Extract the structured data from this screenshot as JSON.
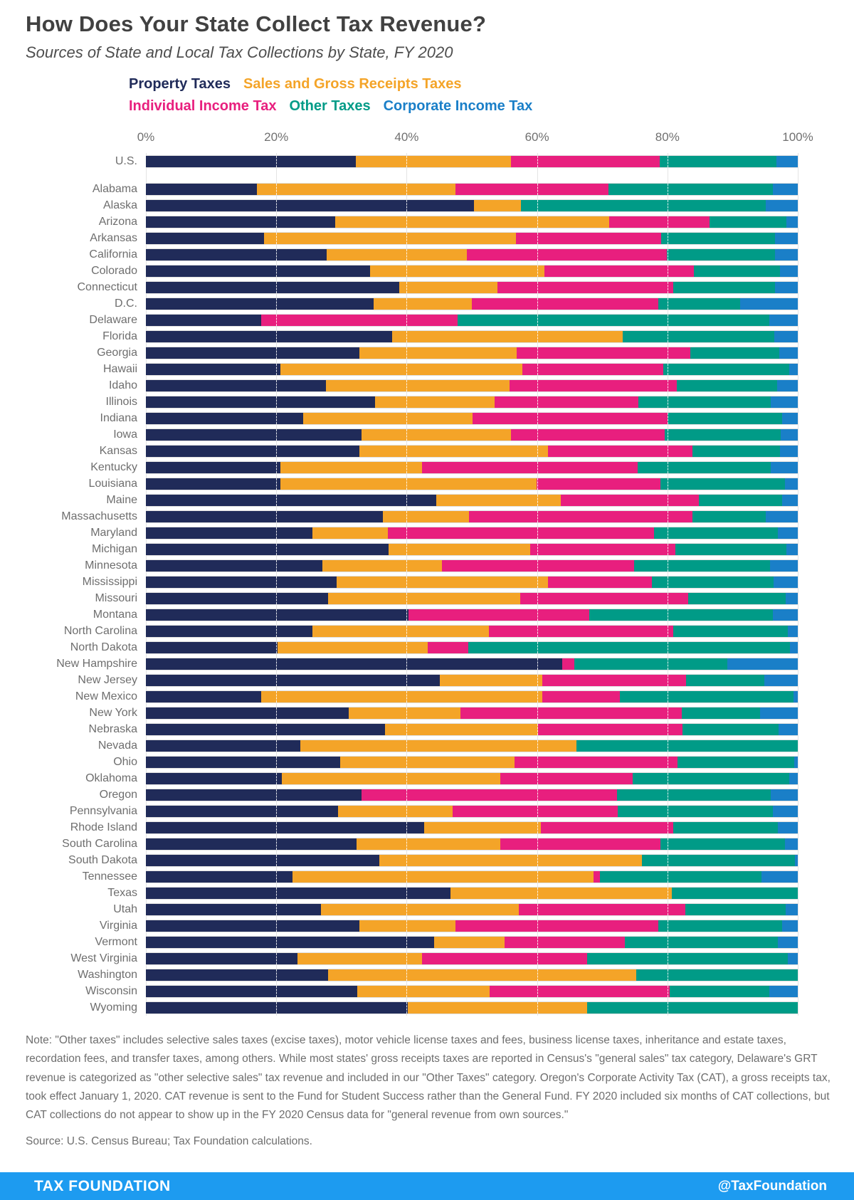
{
  "header": {
    "title": "How Does Your State Collect Tax Revenue?",
    "subtitle": "Sources of State and Local Tax Collections by State, FY 2020"
  },
  "legend": [
    {
      "label": "Property Taxes",
      "color": "#202b59",
      "line": 1
    },
    {
      "label": "Sales and Gross Receipts Taxes",
      "color": "#f4a428",
      "line": 1
    },
    {
      "label": "Individual Income Tax",
      "color": "#e81f7e",
      "line": 2
    },
    {
      "label": "Other Taxes",
      "color": "#009b87",
      "line": 2
    },
    {
      "label": "Corporate Income Tax",
      "color": "#1a7fc8",
      "line": 2
    }
  ],
  "axis": {
    "ticks": [
      {
        "label": "0%",
        "pct": 0
      },
      {
        "label": "20%",
        "pct": 20
      },
      {
        "label": "40%",
        "pct": 40
      },
      {
        "label": "60%",
        "pct": 60
      },
      {
        "label": "80%",
        "pct": 80
      },
      {
        "label": "100%",
        "pct": 100
      }
    ]
  },
  "chart_data": {
    "type": "bar",
    "orientation": "horizontal-stacked",
    "xlim": [
      0,
      100
    ],
    "grid": "dashed-white-at-20-40-60-80",
    "legend_position": "top",
    "series_names": [
      "Property Taxes",
      "Sales and Gross Receipts Taxes",
      "Individual Income Tax",
      "Other Taxes",
      "Corporate Income Tax"
    ],
    "colors": [
      "#202b59",
      "#f4a428",
      "#e81f7e",
      "#009b87",
      "#1a7fc8"
    ],
    "rows": [
      {
        "label": "U.S.",
        "values": [
          32.2,
          23.8,
          22.8,
          17.9,
          3.3
        ]
      },
      {
        "label": "Alabama",
        "values": [
          17.0,
          30.5,
          23.5,
          25.2,
          3.8
        ]
      },
      {
        "label": "Alaska",
        "values": [
          50.3,
          7.2,
          0,
          37.6,
          4.9
        ]
      },
      {
        "label": "Arizona",
        "values": [
          29.0,
          42.1,
          15.4,
          11.8,
          1.7
        ]
      },
      {
        "label": "Arkansas",
        "values": [
          18.1,
          38.7,
          22.2,
          17.5,
          3.5
        ]
      },
      {
        "label": "California",
        "values": [
          27.7,
          21.5,
          30.7,
          16.6,
          3.5
        ]
      },
      {
        "label": "Colorado",
        "values": [
          34.4,
          26.7,
          23.0,
          13.2,
          2.7
        ]
      },
      {
        "label": "Connecticut",
        "values": [
          38.9,
          15.0,
          27.0,
          15.6,
          3.5
        ]
      },
      {
        "label": "D.C.",
        "values": [
          34.9,
          15.1,
          28.6,
          12.6,
          8.8
        ]
      },
      {
        "label": "Delaware",
        "values": [
          17.7,
          0,
          30.1,
          47.8,
          4.4
        ]
      },
      {
        "label": "Florida",
        "values": [
          37.8,
          35.4,
          0,
          23.2,
          3.6
        ]
      },
      {
        "label": "Georgia",
        "values": [
          32.7,
          24.2,
          26.6,
          13.7,
          2.8
        ]
      },
      {
        "label": "Hawaii",
        "values": [
          20.6,
          37.2,
          21.6,
          19.3,
          1.3
        ]
      },
      {
        "label": "Idaho",
        "values": [
          27.6,
          28.2,
          25.6,
          15.4,
          3.2
        ]
      },
      {
        "label": "Illinois",
        "values": [
          35.2,
          18.3,
          22.0,
          20.4,
          4.1
        ]
      },
      {
        "label": "Indiana",
        "values": [
          24.1,
          26.0,
          29.9,
          17.6,
          2.4
        ]
      },
      {
        "label": "Iowa",
        "values": [
          33.1,
          22.9,
          23.6,
          17.8,
          2.6
        ]
      },
      {
        "label": "Kansas",
        "values": [
          32.7,
          29.0,
          22.1,
          13.5,
          2.7
        ]
      },
      {
        "label": "Kentucky",
        "values": [
          20.6,
          21.8,
          33.0,
          20.5,
          4.1
        ]
      },
      {
        "label": "Louisiana",
        "values": [
          20.6,
          39.3,
          19.0,
          19.1,
          2.0
        ]
      },
      {
        "label": "Maine",
        "values": [
          44.5,
          19.1,
          21.2,
          12.8,
          2.4
        ]
      },
      {
        "label": "Massachusetts",
        "values": [
          36.3,
          13.3,
          34.2,
          11.3,
          4.9
        ]
      },
      {
        "label": "Maryland",
        "values": [
          25.5,
          11.6,
          40.8,
          19.0,
          3.1
        ]
      },
      {
        "label": "Michigan",
        "values": [
          37.2,
          21.7,
          22.3,
          17.1,
          1.7
        ]
      },
      {
        "label": "Minnesota",
        "values": [
          27.1,
          18.3,
          29.5,
          20.8,
          4.3
        ]
      },
      {
        "label": "Mississippi",
        "values": [
          29.3,
          32.4,
          15.9,
          18.7,
          3.7
        ]
      },
      {
        "label": "Missouri",
        "values": [
          27.9,
          29.5,
          25.8,
          15.0,
          1.8
        ]
      },
      {
        "label": "Montana",
        "values": [
          40.3,
          0,
          27.7,
          28.2,
          3.8
        ]
      },
      {
        "label": "North Carolina",
        "values": [
          25.6,
          27.0,
          28.3,
          17.6,
          1.5
        ]
      },
      {
        "label": "North Dakota",
        "values": [
          20.2,
          23.0,
          6.3,
          49.3,
          1.2
        ]
      },
      {
        "label": "New Hampshire",
        "values": [
          63.9,
          0,
          1.8,
          23.5,
          10.8
        ]
      },
      {
        "label": "New Jersey",
        "values": [
          45.1,
          15.7,
          22.1,
          12.0,
          5.1
        ]
      },
      {
        "label": "New Mexico",
        "values": [
          17.7,
          43.1,
          11.9,
          26.6,
          0.7
        ]
      },
      {
        "label": "New York",
        "values": [
          31.1,
          17.1,
          34.0,
          12.0,
          5.8
        ]
      },
      {
        "label": "Nebraska",
        "values": [
          36.7,
          23.4,
          22.2,
          14.7,
          3.0
        ]
      },
      {
        "label": "Nevada",
        "values": [
          23.7,
          42.4,
          0,
          33.9,
          0
        ]
      },
      {
        "label": "Ohio",
        "values": [
          29.8,
          26.8,
          24.9,
          18.0,
          0.5
        ]
      },
      {
        "label": "Oklahoma",
        "values": [
          20.9,
          33.5,
          20.3,
          24.0,
          1.3
        ]
      },
      {
        "label": "Oregon",
        "values": [
          33.1,
          0,
          39.2,
          23.5,
          4.2
        ]
      },
      {
        "label": "Pennsylvania",
        "values": [
          29.5,
          17.5,
          25.4,
          23.8,
          3.8
        ]
      },
      {
        "label": "Rhode Island",
        "values": [
          42.7,
          17.9,
          20.3,
          16.1,
          3.0
        ]
      },
      {
        "label": "South Carolina",
        "values": [
          32.3,
          22.1,
          24.5,
          19.1,
          2.0
        ]
      },
      {
        "label": "South Dakota",
        "values": [
          35.8,
          40.3,
          0,
          23.5,
          0.4
        ]
      },
      {
        "label": "Tennessee",
        "values": [
          22.5,
          46.2,
          1.0,
          24.7,
          5.6
        ]
      },
      {
        "label": "Texas",
        "values": [
          46.7,
          34.0,
          0,
          19.3,
          0
        ]
      },
      {
        "label": "Utah",
        "values": [
          26.9,
          30.3,
          25.6,
          15.3,
          1.9
        ]
      },
      {
        "label": "Virginia",
        "values": [
          32.7,
          14.8,
          31.1,
          19.0,
          2.4
        ]
      },
      {
        "label": "Vermont",
        "values": [
          44.2,
          10.8,
          18.5,
          23.5,
          3.0
        ]
      },
      {
        "label": "West Virginia",
        "values": [
          23.3,
          19.1,
          25.3,
          30.8,
          1.5
        ]
      },
      {
        "label": "Washington",
        "values": [
          27.9,
          47.3,
          0,
          24.8,
          0
        ]
      },
      {
        "label": "Wisconsin",
        "values": [
          32.4,
          20.3,
          27.7,
          15.2,
          4.4
        ]
      },
      {
        "label": "Wyoming",
        "values": [
          40.2,
          27.5,
          0,
          32.3,
          0
        ]
      }
    ]
  },
  "notes": {
    "note": "Note: \"Other taxes\" includes selective sales taxes (excise taxes), motor vehicle license taxes and fees, business license taxes, inheritance and estate taxes, recordation fees, and transfer taxes, among others. While most states' gross receipts taxes are reported in Census's \"general sales\" tax category, Delaware's GRT revenue is categorized as \"other selective sales\" tax revenue and included in our \"Other Taxes\" category. Oregon's Corporate Activity Tax (CAT), a gross receipts tax, took effect January 1, 2020. CAT revenue is sent to the Fund for Student Success rather than the General Fund. FY 2020 included six months of CAT collections, but CAT collections do not appear to show up in the FY 2020 Census data for \"general revenue from own sources.\"",
    "source": "Source: U.S. Census Bureau; Tax Foundation calculations."
  },
  "footer": {
    "brand": "TAX FOUNDATION",
    "handle": "@TaxFoundation",
    "bar_color": "#1d9bf0"
  }
}
